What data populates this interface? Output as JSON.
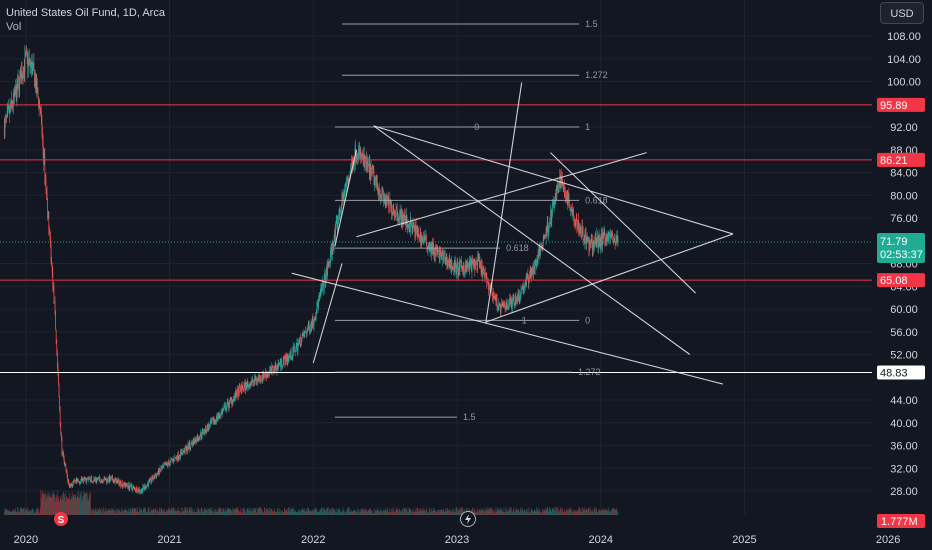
{
  "header": {
    "symbol_line": "United States Oil Fund, 1D, Arca",
    "volume_label": "Vol"
  },
  "currency_button": "USD",
  "colors": {
    "background": "#131722",
    "candle_up": "#26a69a",
    "candle_down": "#ef5350",
    "hline_red": "#f23645",
    "hline_white": "#ffffff",
    "drawing": "#e0e3eb",
    "fib": "#b2b5be",
    "price_badge": "#22ab94"
  },
  "icons": [
    "dividend-icon",
    "lightning-icon"
  ],
  "chart_data": {
    "type": "candlestick",
    "x_ticks": [
      "2020",
      "2021",
      "2022",
      "2023",
      "2024",
      "2025",
      "2026"
    ],
    "x_tick_years": [
      2020,
      2021,
      2022,
      2023,
      2024,
      2025,
      2026
    ],
    "y_ticks": [
      "108.00",
      "104.00",
      "100.00",
      "92.00",
      "88.00",
      "84.00",
      "80.00",
      "76.00",
      "68.00",
      "64.00",
      "60.00",
      "56.00",
      "52.00",
      "44.00",
      "40.00",
      "36.00",
      "32.00",
      "28.00"
    ],
    "y_tick_values": [
      108,
      104,
      100,
      92,
      88,
      84,
      80,
      76,
      68,
      64,
      60,
      56,
      52,
      44,
      40,
      36,
      32,
      28
    ],
    "ylim": [
      27,
      112
    ],
    "xlim": [
      2019.82,
      2026.5
    ],
    "price_keypoints": [
      [
        2019.85,
        92
      ],
      [
        2019.92,
        97
      ],
      [
        2020.0,
        104
      ],
      [
        2020.05,
        102
      ],
      [
        2020.1,
        95
      ],
      [
        2020.15,
        78
      ],
      [
        2020.2,
        60
      ],
      [
        2020.25,
        35
      ],
      [
        2020.3,
        29
      ],
      [
        2020.4,
        30
      ],
      [
        2020.6,
        30
      ],
      [
        2020.8,
        28
      ],
      [
        2020.95,
        32
      ],
      [
        2021.1,
        35
      ],
      [
        2021.3,
        40
      ],
      [
        2021.5,
        46
      ],
      [
        2021.7,
        49
      ],
      [
        2021.85,
        52
      ],
      [
        2022.0,
        58
      ],
      [
        2022.1,
        67
      ],
      [
        2022.2,
        79
      ],
      [
        2022.3,
        88
      ],
      [
        2022.4,
        84
      ],
      [
        2022.5,
        79
      ],
      [
        2022.7,
        74
      ],
      [
        2022.85,
        70
      ],
      [
        2023.0,
        67
      ],
      [
        2023.15,
        68
      ],
      [
        2023.3,
        60
      ],
      [
        2023.42,
        62
      ],
      [
        2023.55,
        68
      ],
      [
        2023.65,
        76
      ],
      [
        2023.72,
        83
      ],
      [
        2023.82,
        76
      ],
      [
        2023.92,
        71
      ],
      [
        2024.05,
        73
      ],
      [
        2024.12,
        71.8
      ]
    ],
    "horizontal_lines": [
      {
        "value": 95.89,
        "label": "95.89",
        "color": "#f23645"
      },
      {
        "value": 86.21,
        "label": "86.21",
        "color": "#f23645"
      },
      {
        "value": 65.08,
        "label": "65.08",
        "color": "#f23645"
      },
      {
        "value": 48.83,
        "label": "48.83",
        "color": "#ffffff"
      }
    ],
    "last_price": {
      "value": 71.79,
      "label": "71.79",
      "countdown": "02:53:37"
    },
    "volume_badge": "1.777M",
    "fib_upper": [
      {
        "value": 110.1,
        "label": "1.5",
        "x0": 2022.2,
        "x1": 2023.85
      },
      {
        "value": 101.1,
        "label": "1.272",
        "x0": 2022.2,
        "x1": 2023.85
      },
      {
        "value": 92.0,
        "label": "1",
        "x0": 2022.15,
        "x1": 2023.85
      },
      {
        "value": 92.0,
        "label": "0",
        "x0": 2023.12,
        "x1": 2023.12
      },
      {
        "value": 79.1,
        "label": "0.618",
        "x0": 2022.15,
        "x1": 2023.85
      },
      {
        "value": 70.7,
        "label": "0.618",
        "x0": 2022.15,
        "x1": 2023.3
      },
      {
        "value": 58.0,
        "label": "0",
        "x0": 2022.15,
        "x1": 2023.85
      },
      {
        "value": 58.0,
        "label": "1",
        "x0": 2023.45,
        "x1": 2023.45
      },
      {
        "value": 48.9,
        "label": "1.272",
        "x0": 2022.15,
        "x1": 2023.8
      },
      {
        "value": 41.0,
        "label": "1.5",
        "x0": 2022.15,
        "x1": 2023.0
      }
    ],
    "trendlines": [
      [
        [
          2022.15,
          71
        ],
        [
          2022.3,
          88
        ]
      ],
      [
        [
          2022.0,
          50.5
        ],
        [
          2022.2,
          68
        ]
      ],
      [
        [
          2022.42,
          92.2
        ],
        [
          2024.92,
          73.2
        ]
      ],
      [
        [
          2022.42,
          92.2
        ],
        [
          2024.62,
          52.0
        ]
      ],
      [
        [
          2021.85,
          66.3
        ],
        [
          2024.85,
          46.8
        ]
      ],
      [
        [
          2022.3,
          72.7
        ],
        [
          2024.32,
          87.5
        ]
      ],
      [
        [
          2023.2,
          57.5
        ],
        [
          2023.45,
          99.8
        ]
      ],
      [
        [
          2023.65,
          87.5
        ],
        [
          2024.66,
          62.8
        ]
      ],
      [
        [
          2023.2,
          57.7
        ],
        [
          2024.92,
          73.2
        ]
      ]
    ]
  }
}
